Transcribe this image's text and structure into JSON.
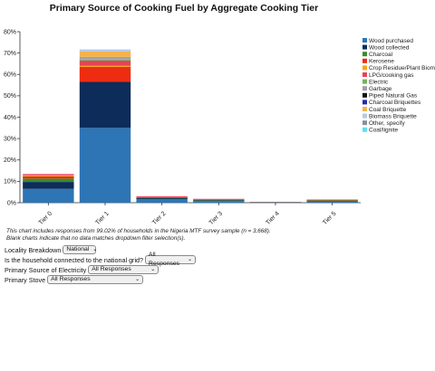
{
  "chart_data": {
    "type": "bar",
    "stacked": true,
    "title": "Primary Source of Cooking Fuel by Aggregate Cooking Tier",
    "xlabel": "",
    "ylabel": "",
    "ylim": [
      0,
      80
    ],
    "y_ticks": [
      "0%",
      "10%",
      "20%",
      "30%",
      "40%",
      "50%",
      "60%",
      "70%",
      "80%"
    ],
    "grid": false,
    "legend_position": "right",
    "categories": [
      "Tier 0",
      "Tier 1",
      "Tier 2",
      "Tier 3",
      "Tier 4",
      "Tier 5"
    ],
    "series": [
      {
        "name": "Wood purchased",
        "color": "#2e75b6",
        "values": [
          6.5,
          35,
          1.6,
          0.8,
          0.2,
          0.5
        ]
      },
      {
        "name": "Wood collected",
        "color": "#0d2c5a",
        "values": [
          3.2,
          21.5,
          0.5,
          0.3,
          0,
          0.3
        ]
      },
      {
        "name": "Charcoal",
        "color": "#3a8a2e",
        "values": [
          1.6,
          0,
          0.4,
          0.2,
          0.1,
          0.3
        ]
      },
      {
        "name": "Kerosene",
        "color": "#ee2c12",
        "values": [
          1,
          7,
          0.2,
          0.3,
          0,
          0.2
        ]
      },
      {
        "name": "Crop Residue/Plant Biomass",
        "color": "#f5a623",
        "values": [
          0.5,
          0.5,
          0,
          0,
          0,
          0
        ]
      },
      {
        "name": "LPG/cooking gas",
        "color": "#e8425a",
        "values": [
          0.6,
          2.5,
          0.3,
          0.2,
          0.05,
          0.2
        ]
      },
      {
        "name": "Electric",
        "color": "#6fb55f",
        "values": [
          0,
          0.5,
          0,
          0,
          0,
          0
        ]
      },
      {
        "name": "Garbage",
        "color": "#9ea3aa",
        "values": [
          0,
          1.2,
          0,
          0,
          0,
          0
        ]
      },
      {
        "name": "Piped Natural Gas",
        "color": "#111111",
        "values": [
          0,
          0,
          0,
          0,
          0,
          0
        ]
      },
      {
        "name": "Charcoal Briquettes",
        "color": "#1f2bb5",
        "values": [
          0,
          0,
          0,
          0,
          0,
          0
        ]
      },
      {
        "name": "Coal Briquette",
        "color": "#f3b34a",
        "values": [
          0,
          2.5,
          0,
          0,
          0,
          0
        ]
      },
      {
        "name": "Biomass Briquette",
        "color": "#b8c8e8",
        "values": [
          0,
          1,
          0,
          0,
          0,
          0
        ]
      },
      {
        "name": "Other, specify",
        "color": "#8a8f96",
        "values": [
          0,
          0,
          0,
          0,
          0,
          0
        ]
      },
      {
        "name": "Coal/lignite",
        "color": "#5ee0f0",
        "values": [
          0,
          0,
          0,
          0,
          0,
          0
        ]
      }
    ]
  },
  "note": {
    "line1": "This chart includes responses from 99.02% of households in the Nigeria MTF survey sample (n = 3,668).",
    "line2": "Blank charts indicate that no data matches dropdown filter selection(s)."
  },
  "controls": {
    "locality": {
      "label": "Locality Breakdown",
      "value": "National"
    },
    "grid": {
      "label": "Is the household connected to the national grid?",
      "value": "All Responses"
    },
    "electricity": {
      "label": "Primary Source of Electricity",
      "value": "All Responses"
    },
    "stove": {
      "label": "Primary Stove",
      "value": "All Responses"
    }
  }
}
